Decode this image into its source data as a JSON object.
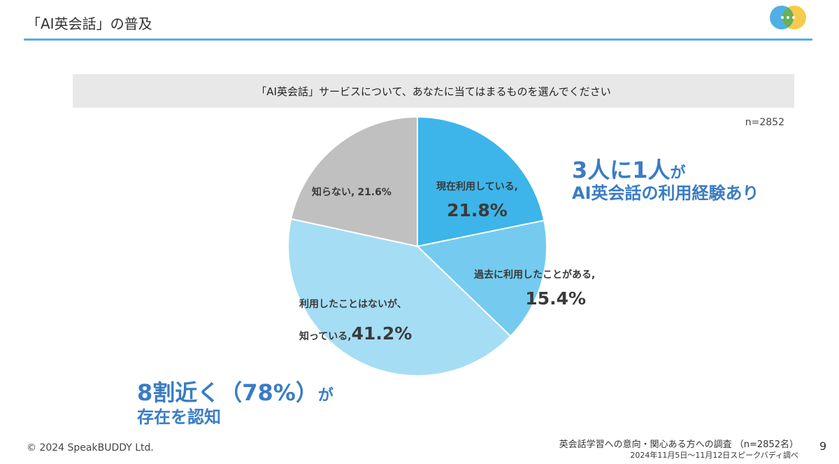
{
  "header": {
    "title": "「AI英会話」の普及"
  },
  "question": "「AI英会話」サービスについて、あなたに当てはまるものを選んでください",
  "sample_size": "n=2852",
  "chart_data": {
    "type": "pie",
    "slices": [
      {
        "label": "現在利用している,",
        "value": 21.8,
        "display": "21.8%",
        "color": "#3db5ea"
      },
      {
        "label": "過去に利用したことがある,",
        "value": 15.4,
        "display": "15.4%",
        "color": "#74cbef"
      },
      {
        "label_line1": "利用したことはないが、",
        "label_line2": "知っている,",
        "value": 41.2,
        "display": "41.2%",
        "color": "#a5ddf5"
      },
      {
        "label": "知らない,",
        "value": 21.6,
        "display": "21.6%",
        "color": "#c0c0c0"
      }
    ]
  },
  "callouts": {
    "first": {
      "big": "3人に1人",
      "small": "が",
      "line2": "AI英会話の利用経験あり"
    },
    "second": {
      "big": "8割近く（78%）",
      "small": "が",
      "line2": "存在を認知"
    }
  },
  "footer": {
    "copyright": "© 2024 SpeakBUDDY Ltd.",
    "source_line1": "英会話学習への意向・関心ある方への調査 （n=2852名）",
    "source_line2": "2024年11月5日〜11月12日スピークバディ調べ",
    "page_number": "9"
  }
}
